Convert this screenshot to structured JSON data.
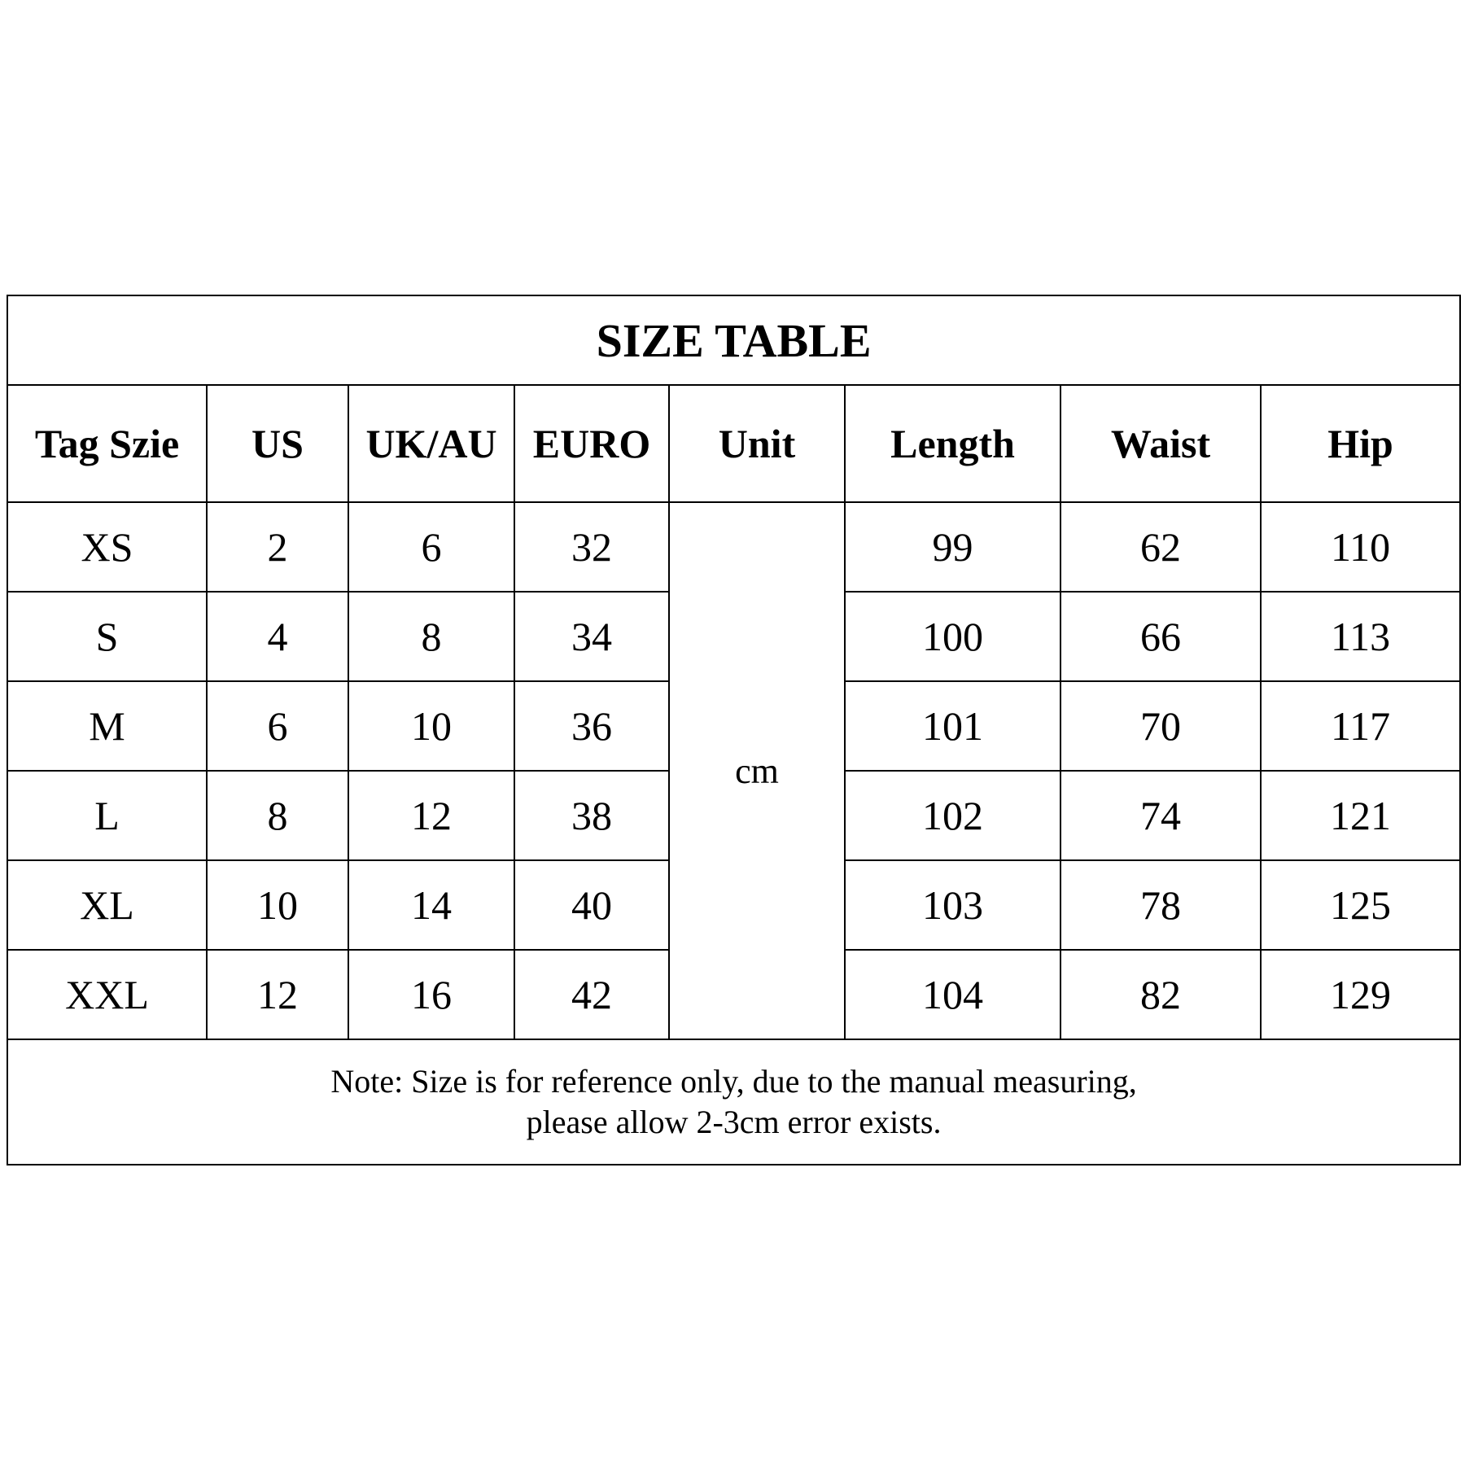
{
  "title": "SIZE TABLE",
  "columns": [
    "Tag Szie",
    "US",
    "UK/AU",
    "EURO",
    "Unit",
    "Length",
    "Waist",
    "Hip"
  ],
  "unit": "cm",
  "rows": [
    [
      "XS",
      "2",
      "6",
      "32",
      "99",
      "62",
      "110"
    ],
    [
      "S",
      "4",
      "8",
      "34",
      "100",
      "66",
      "113"
    ],
    [
      "M",
      "6",
      "10",
      "36",
      "101",
      "70",
      "117"
    ],
    [
      "L",
      "8",
      "12",
      "38",
      "102",
      "74",
      "121"
    ],
    [
      "XL",
      "10",
      "14",
      "40",
      "103",
      "78",
      "125"
    ],
    [
      "XXL",
      "12",
      "16",
      "42",
      "104",
      "82",
      "129"
    ]
  ],
  "note": {
    "line1": "Note: Size is for reference only, due to the manual measuring,",
    "line2": "please allow 2-3cm error exists."
  }
}
